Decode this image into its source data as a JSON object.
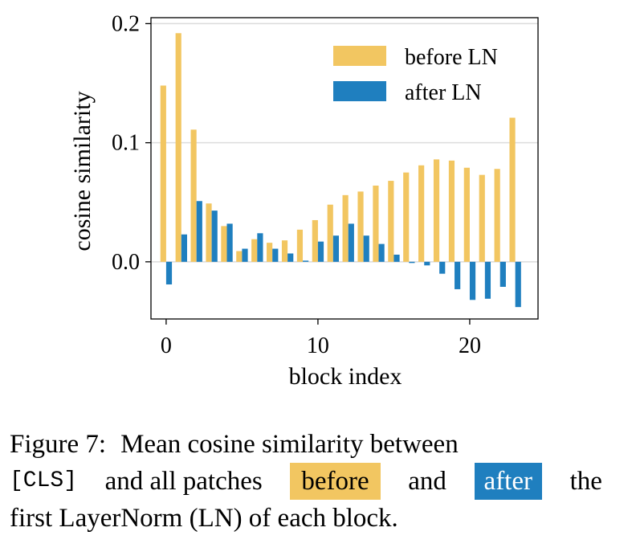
{
  "chart_data": {
    "type": "bar",
    "xlabel": "block index",
    "ylabel": "cosine similarity",
    "xlim": [
      -1,
      24.5
    ],
    "ylim": [
      -0.048,
      0.205
    ],
    "xticks": [
      0,
      10,
      20
    ],
    "xtick_labels": [
      "0",
      "10",
      "20"
    ],
    "yticks": [
      0.0,
      0.1,
      0.2
    ],
    "ytick_labels": [
      "0.0",
      "0.1",
      "0.2"
    ],
    "grid": "horizontal",
    "legend_position": "top-right",
    "x": [
      0,
      1,
      2,
      3,
      4,
      5,
      6,
      7,
      8,
      9,
      10,
      11,
      12,
      13,
      14,
      15,
      16,
      17,
      18,
      19,
      20,
      21,
      22,
      23
    ],
    "series": [
      {
        "name": "before LN",
        "color": "#f2c661",
        "values": [
          0.148,
          0.192,
          0.111,
          0.049,
          0.03,
          0.009,
          0.019,
          0.016,
          0.018,
          0.027,
          0.035,
          0.048,
          0.056,
          0.059,
          0.064,
          0.068,
          0.075,
          0.081,
          0.086,
          0.085,
          0.079,
          0.073,
          0.078,
          0.121
        ]
      },
      {
        "name": "after LN",
        "color": "#1f7fbf",
        "values": [
          -0.019,
          0.023,
          0.051,
          0.043,
          0.032,
          0.011,
          0.024,
          0.011,
          0.007,
          0.001,
          0.017,
          0.022,
          0.032,
          0.022,
          0.015,
          0.006,
          -0.001,
          -0.003,
          -0.01,
          -0.023,
          -0.032,
          -0.031,
          -0.021,
          -0.038
        ]
      }
    ]
  },
  "caption": {
    "figure_label": "Figure 7:",
    "text_1": "Mean cosine similarity between",
    "cls_token": "[CLS]",
    "text_2": "and all patches",
    "before_word": "before",
    "and_word": "and",
    "after_word": "after",
    "the_word": "the",
    "text_3": "first LayerNorm (LN) of each block.",
    "before_color": "#f2c661",
    "after_color": "#1f7fbf"
  }
}
